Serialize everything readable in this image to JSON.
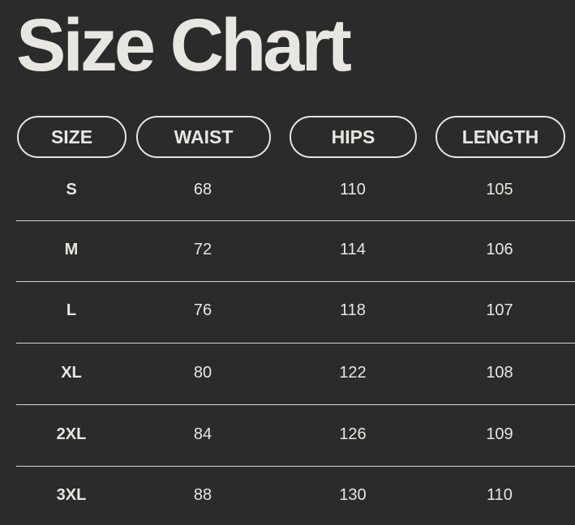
{
  "title": "Size Chart",
  "colors": {
    "background": "#2b2b2b",
    "text": "#e8e6e0"
  },
  "headers": [
    "SIZE",
    "WAIST",
    "HIPS",
    "LENGTH"
  ],
  "rows": [
    [
      "S",
      "68",
      "110",
      "105"
    ],
    [
      "M",
      "72",
      "114",
      "106"
    ],
    [
      "L",
      "76",
      "118",
      "107"
    ],
    [
      "XL",
      "80",
      "122",
      "108"
    ],
    [
      "2XL",
      "84",
      "126",
      "109"
    ],
    [
      "3XL",
      "88",
      "130",
      "110"
    ]
  ]
}
